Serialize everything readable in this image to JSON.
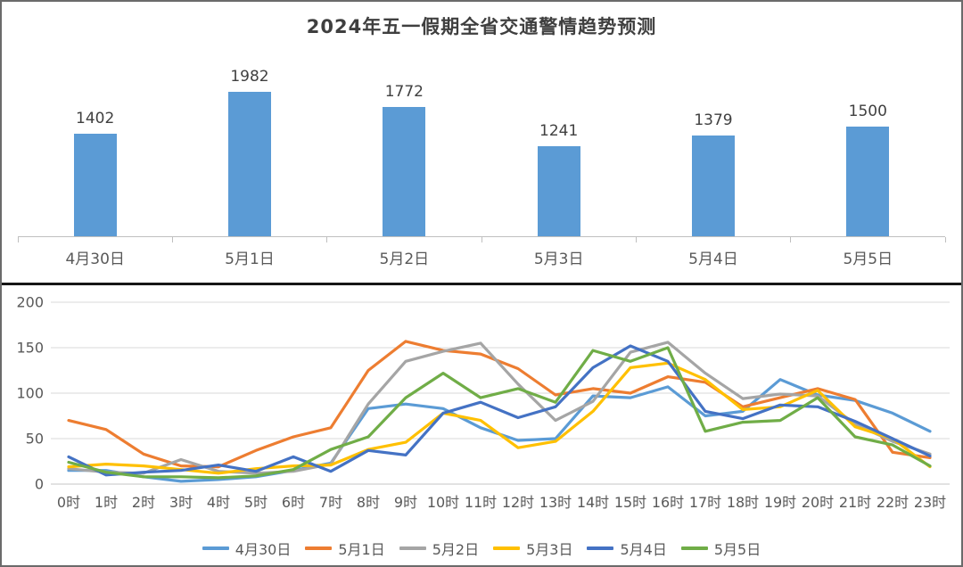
{
  "title": "2024年五一假期全省交通警情趋势预测",
  "chart_data": [
    {
      "type": "bar",
      "title": "2024年五一假期全省交通警情趋势预测",
      "categories": [
        "4月30日",
        "5月1日",
        "5月2日",
        "5月3日",
        "5月4日",
        "5月5日"
      ],
      "values": [
        1402,
        1982,
        1772,
        1241,
        1379,
        1500
      ],
      "bar_color": "#5B9BD5",
      "value_label_color": "#404040",
      "axis_label_color": "#595959",
      "ylim": [
        0,
        2100
      ],
      "data_labels": true,
      "grid": false,
      "legend_position": "none"
    },
    {
      "type": "line",
      "x_labels": [
        "0时",
        "1时",
        "2时",
        "3时",
        "4时",
        "5时",
        "6时",
        "7时",
        "8时",
        "9时",
        "10时",
        "11时",
        "12时",
        "13时",
        "14时",
        "15时",
        "16时",
        "17时",
        "18时",
        "19时",
        "20时",
        "21时",
        "22时",
        "23时"
      ],
      "y_ticks": [
        0,
        50,
        100,
        150,
        200
      ],
      "ylim": [
        0,
        200
      ],
      "grid": true,
      "grid_color": "#d9d9d9",
      "axis_text_color": "#595959",
      "legend_position": "bottom",
      "series": [
        {
          "name": "4月30日",
          "color": "#5B9BD5",
          "values": [
            15,
            15,
            8,
            3,
            5,
            8,
            15,
            23,
            83,
            88,
            83,
            62,
            48,
            50,
            97,
            95,
            107,
            75,
            80,
            115,
            98,
            92,
            78,
            58
          ]
        },
        {
          "name": "5月1日",
          "color": "#ED7D31",
          "values": [
            70,
            60,
            33,
            20,
            19,
            37,
            52,
            62,
            125,
            157,
            147,
            143,
            127,
            98,
            105,
            100,
            118,
            112,
            85,
            95,
            105,
            93,
            35,
            29
          ]
        },
        {
          "name": "5月2日",
          "color": "#A5A5A5",
          "values": [
            17,
            13,
            12,
            27,
            14,
            12,
            14,
            22,
            88,
            135,
            146,
            155,
            110,
            70,
            91,
            145,
            156,
            122,
            94,
            99,
            97,
            66,
            47,
            33
          ]
        },
        {
          "name": "5月3日",
          "color": "#FFC000",
          "values": [
            19,
            22,
            20,
            16,
            12,
            17,
            20,
            21,
            38,
            46,
            78,
            70,
            40,
            47,
            80,
            128,
            133,
            115,
            82,
            85,
            103,
            63,
            50,
            19
          ]
        },
        {
          "name": "5月4日",
          "color": "#4472C4",
          "values": [
            30,
            10,
            13,
            15,
            21,
            14,
            30,
            14,
            37,
            32,
            78,
            90,
            73,
            85,
            128,
            152,
            135,
            80,
            72,
            87,
            85,
            69,
            50,
            31
          ]
        },
        {
          "name": "5月5日",
          "color": "#70AD47",
          "values": [
            24,
            13,
            8,
            8,
            7,
            9,
            16,
            38,
            52,
            95,
            122,
            95,
            105,
            90,
            147,
            135,
            150,
            58,
            68,
            70,
            95,
            52,
            43,
            20
          ]
        }
      ]
    }
  ]
}
